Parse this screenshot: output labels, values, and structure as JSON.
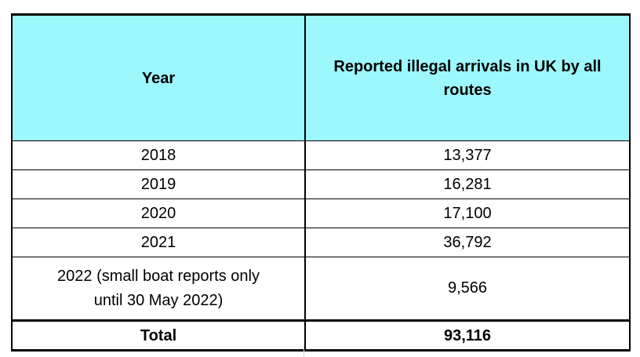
{
  "colors": {
    "header_background": "#9cf8fd",
    "border": "#000000"
  },
  "table": {
    "headers": [
      "Year",
      "Reported illegal arrivals in UK by all routes"
    ],
    "rows": [
      {
        "year": "2018",
        "arrivals": "13,377"
      },
      {
        "year": "2019",
        "arrivals": "16,281"
      },
      {
        "year": "2020",
        "arrivals": "17,100"
      },
      {
        "year": "2021",
        "arrivals": "36,792"
      },
      {
        "year_line1": "2022 (small boat reports only",
        "year_line2": "until 30 May 2022)",
        "arrivals": "9,566"
      }
    ],
    "total": {
      "label": "Total",
      "value": "93,116"
    }
  }
}
